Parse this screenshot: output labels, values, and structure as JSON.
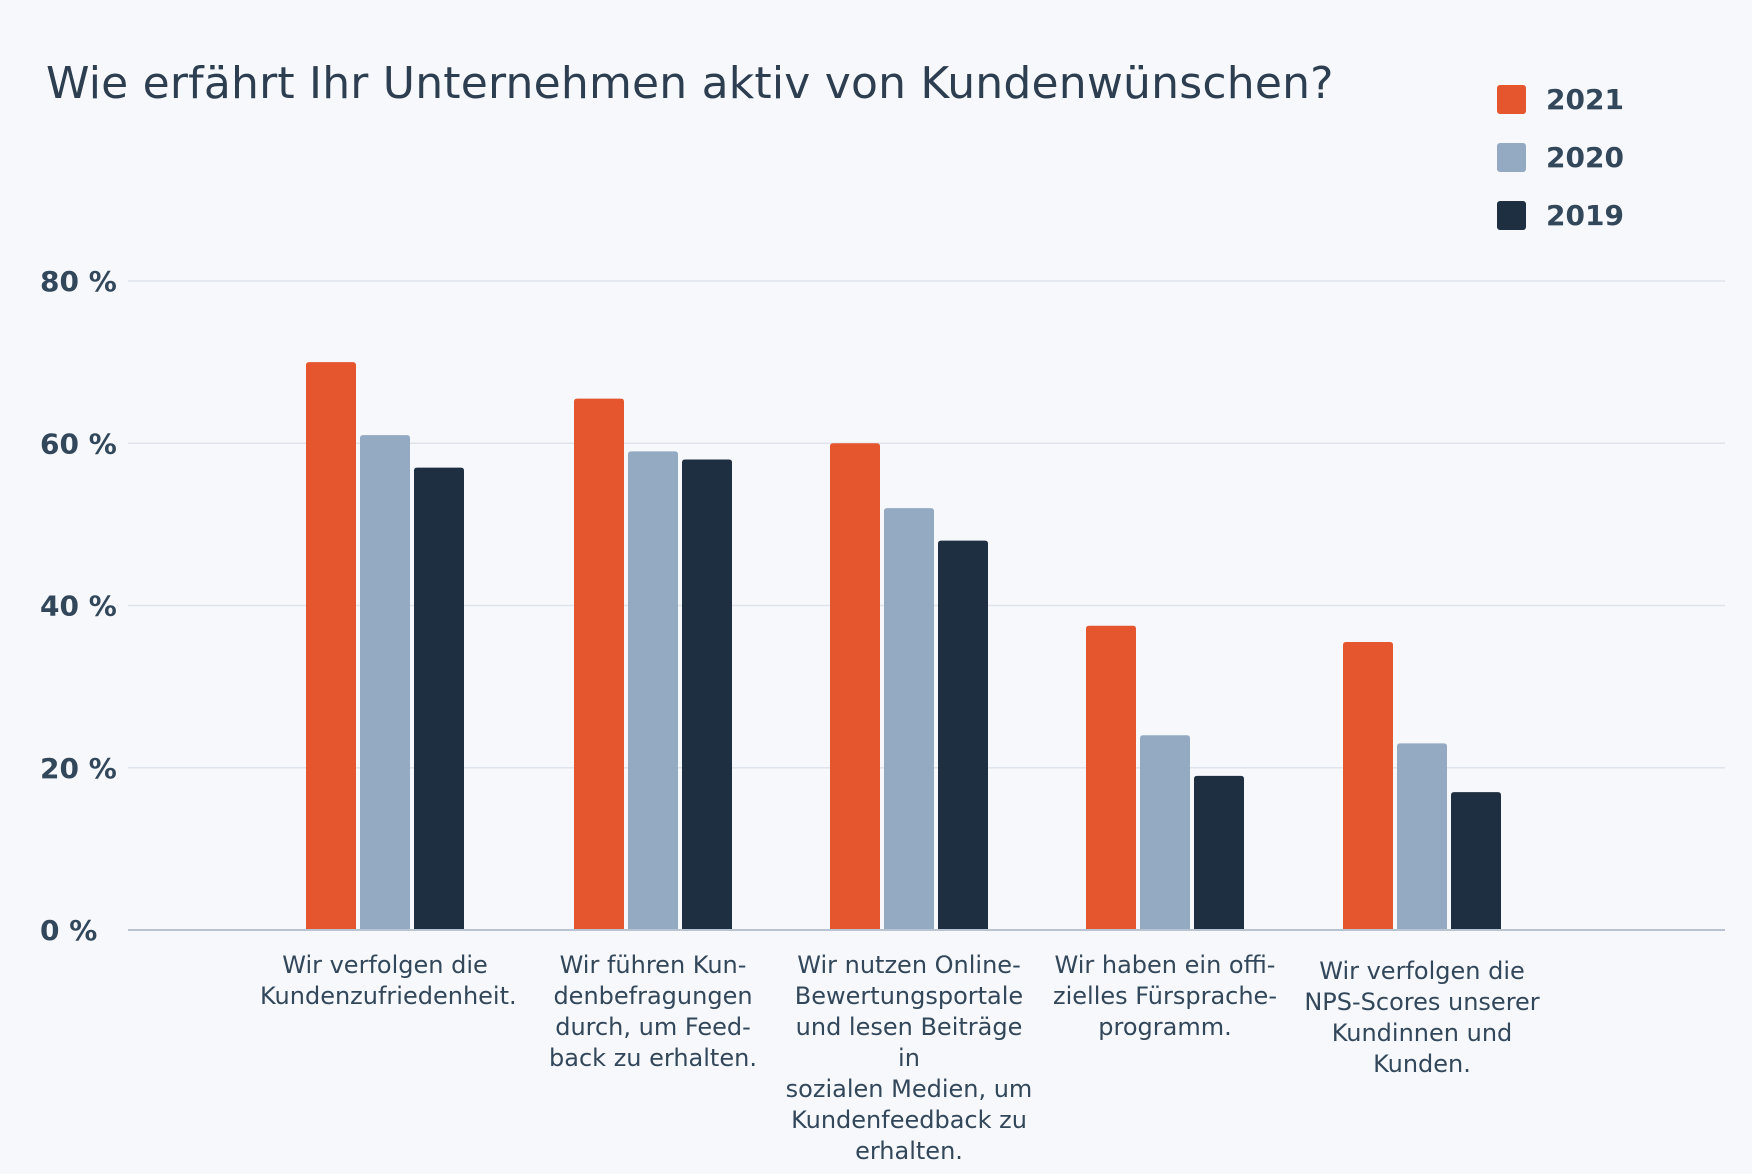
{
  "chart_data": {
    "type": "bar",
    "title": "Wie erfährt Ihr Unternehmen aktiv von Kundenwünschen?",
    "xlabel": "",
    "ylabel": "",
    "ylim": [
      0,
      80
    ],
    "yticks": [
      {
        "value": 0,
        "label": "0 %"
      },
      {
        "value": 20,
        "label": "20 %"
      },
      {
        "value": 40,
        "label": "40 %"
      },
      {
        "value": 60,
        "label": "60 %"
      },
      {
        "value": 80,
        "label": "80 %"
      }
    ],
    "grid": true,
    "legend_position": "top-right",
    "categories": [
      "Wir verfolgen die Kundenzufriedenheit.",
      "Wir führen Kundenbefragungen durch, um Feedback zu erhalten.",
      "Wir nutzen Online-Bewertungsportale und lesen Beiträge in sozialen Medien, um Kundenfeedback zu erhalten.",
      "Wir haben ein offizielles Fürspracheprogramm.",
      "Wir verfolgen die NPS-Scores unserer Kundinnen und Kunden."
    ],
    "category_label_lines": [
      [
        "Wir verfolgen die",
        "Kundenzufriedenheit."
      ],
      [
        "Wir führen Kun-",
        "denbefragungen",
        "durch, um Feed-",
        "back zu erhalten."
      ],
      [
        "Wir nutzen Online-",
        "Bewertungsportale",
        "und lesen Beiträge in",
        "sozialen Medien, um",
        "Kundenfeedback zu",
        "erhalten."
      ],
      [
        "Wir haben ein offi-",
        "zielles Fürsprache-",
        "programm."
      ],
      [
        "Wir verfolgen die",
        "NPS-Scores unserer",
        "Kundinnen und",
        "Kunden."
      ]
    ],
    "series": [
      {
        "name": "2021",
        "color": "#e5562f",
        "values": [
          70,
          65.5,
          60,
          37.5,
          35.5
        ]
      },
      {
        "name": "2020",
        "color": "#94a9c2",
        "values": [
          61,
          59,
          52,
          24,
          23
        ]
      },
      {
        "name": "2019",
        "color": "#1f2f42",
        "values": [
          57,
          58,
          48,
          19,
          17
        ]
      }
    ]
  }
}
